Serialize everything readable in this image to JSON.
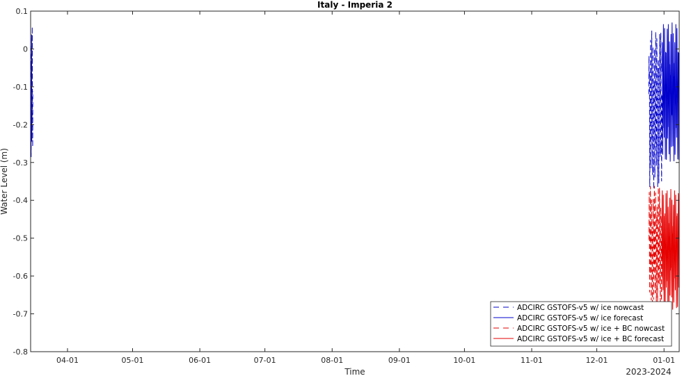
{
  "chart_data": {
    "type": "line",
    "title": "Italy - Imperia 2",
    "xlabel": "Time",
    "ylabel": "Water Level (m)",
    "x_secondary_label": "2023-2024",
    "xlim": [
      "2023-03-15",
      "2024-01-08"
    ],
    "ylim": [
      -0.8,
      0.1
    ],
    "x_ticks": [
      {
        "date": "2023-04-01",
        "label": "04-01"
      },
      {
        "date": "2023-05-01",
        "label": "05-01"
      },
      {
        "date": "2023-06-01",
        "label": "06-01"
      },
      {
        "date": "2023-07-01",
        "label": "07-01"
      },
      {
        "date": "2023-08-01",
        "label": "08-01"
      },
      {
        "date": "2023-09-01",
        "label": "09-01"
      },
      {
        "date": "2023-10-01",
        "label": "10-01"
      },
      {
        "date": "2023-11-01",
        "label": "11-01"
      },
      {
        "date": "2023-12-01",
        "label": "12-01"
      },
      {
        "date": "2024-01-01",
        "label": "01-01"
      }
    ],
    "y_ticks": [
      {
        "value": 0.1,
        "label": "0.1"
      },
      {
        "value": 0,
        "label": "0"
      },
      {
        "value": -0.1,
        "label": "-0.1"
      },
      {
        "value": -0.2,
        "label": "-0.2"
      },
      {
        "value": -0.3,
        "label": "-0.3"
      },
      {
        "value": -0.4,
        "label": "-0.4"
      },
      {
        "value": -0.5,
        "label": "-0.5"
      },
      {
        "value": -0.6,
        "label": "-0.6"
      },
      {
        "value": -0.7,
        "label": "-0.7"
      },
      {
        "value": -0.8,
        "label": "-0.8"
      }
    ],
    "grid": false,
    "legend_position": "bottom-right",
    "series": [
      {
        "name": "ADCIRC GSTOFS-v5 w/ ice nowcast",
        "color": "#0000cc",
        "dash": "dashed",
        "segments": [
          {
            "start": "2023-03-15",
            "end": "2023-03-16",
            "min": -0.29,
            "max": 0.06,
            "cycles": 3
          },
          {
            "start": "2023-12-25",
            "end": "2023-12-31",
            "min": -0.37,
            "max": 0.05,
            "cycles": 10
          }
        ]
      },
      {
        "name": "ADCIRC GSTOFS-v5 w/ ice forecast",
        "color": "#0000cc",
        "dash": "solid",
        "segments": [
          {
            "start": "2023-12-31",
            "end": "2024-01-08",
            "min": -0.3,
            "max": 0.07,
            "cycles": 14
          }
        ]
      },
      {
        "name": "ADCIRC GSTOFS-v5 w/ ice + BC nowcast",
        "color": "#e60000",
        "dash": "dashed",
        "segments": [
          {
            "start": "2023-12-25",
            "end": "2023-12-31",
            "min": -0.69,
            "max": -0.36,
            "cycles": 10
          }
        ]
      },
      {
        "name": "ADCIRC GSTOFS-v5 w/ ice + BC forecast",
        "color": "#e60000",
        "dash": "solid",
        "segments": [
          {
            "start": "2023-12-31",
            "end": "2024-01-08",
            "min": -0.69,
            "max": -0.37,
            "cycles": 14
          }
        ]
      }
    ]
  }
}
